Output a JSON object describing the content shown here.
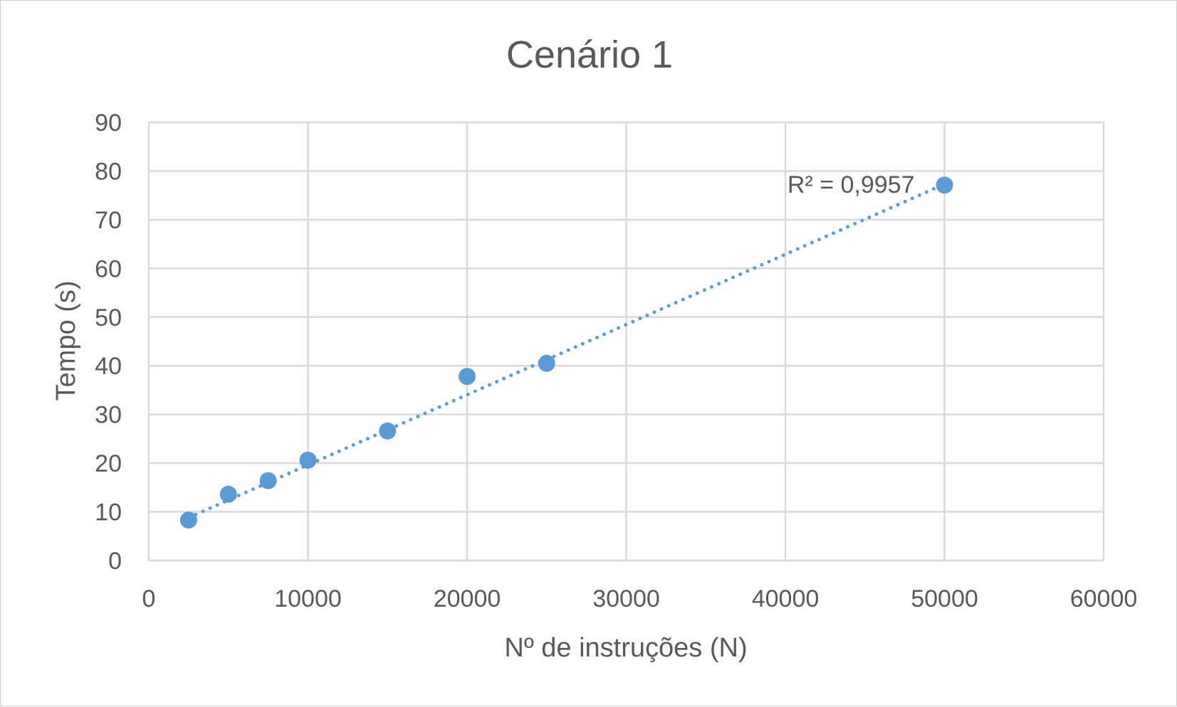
{
  "chart_data": {
    "type": "scatter",
    "title": "Cenário 1",
    "xlabel": "Nº de instruções (N)",
    "ylabel": "Tempo (s)",
    "xlim": [
      0,
      60000
    ],
    "ylim": [
      0,
      90
    ],
    "x_ticks": [
      0,
      10000,
      20000,
      30000,
      40000,
      50000,
      60000
    ],
    "y_ticks": [
      0,
      10,
      20,
      30,
      40,
      50,
      60,
      70,
      80,
      90
    ],
    "grid": true,
    "series": [
      {
        "points": [
          {
            "x": 2500,
            "y": 8.3
          },
          {
            "x": 5000,
            "y": 13.6
          },
          {
            "x": 7500,
            "y": 16.4
          },
          {
            "x": 10000,
            "y": 20.6
          },
          {
            "x": 15000,
            "y": 26.6
          },
          {
            "x": 20000,
            "y": 37.8
          },
          {
            "x": 25000,
            "y": 40.5
          },
          {
            "x": 50000,
            "y": 77.1
          }
        ]
      }
    ],
    "trendline": {
      "type": "linear",
      "style": "dotted",
      "x_range": [
        2500,
        50000
      ],
      "y_range": [
        8.8,
        77.3
      ],
      "label": "R² = 0,9957"
    },
    "colors": {
      "series": "#5b9bd5",
      "grid": "#d9d9d9",
      "text": "#595959"
    }
  }
}
